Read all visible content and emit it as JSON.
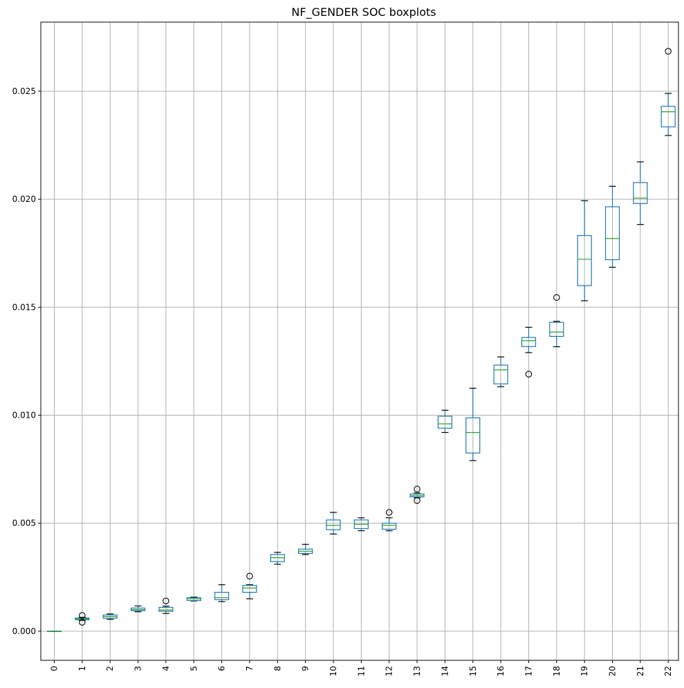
{
  "chart_data": {
    "type": "boxplot",
    "title": "NF_GENDER SOC boxplots",
    "xlabel": "",
    "ylabel": "",
    "ylim": [
      -0.00135,
      0.0282
    ],
    "grid": true,
    "categories": [
      "0",
      "1",
      "2",
      "3",
      "4",
      "5",
      "6",
      "7",
      "8",
      "9",
      "10",
      "11",
      "12",
      "13",
      "14",
      "15",
      "16",
      "17",
      "18",
      "19",
      "20",
      "21",
      "22"
    ],
    "y_ticks": [
      0.0,
      0.005,
      0.01,
      0.015,
      0.02,
      0.025
    ],
    "y_tick_labels": [
      "0.000",
      "0.005",
      "0.010",
      "0.015",
      "0.020",
      "0.025"
    ],
    "colors": {
      "box": "#1f77b4",
      "median": "#2ca02c",
      "whisker": "#000000",
      "grid": "#b0b0b0"
    },
    "boxes": [
      {
        "label": "0",
        "whislo": 0.0,
        "q1": 0.0,
        "med": 0.0,
        "q3": 0.0,
        "whishi": 0.0,
        "fliers": []
      },
      {
        "label": "1",
        "whislo": 0.0005,
        "q1": 0.00053,
        "med": 0.00057,
        "q3": 0.00061,
        "whishi": 0.00064,
        "fliers": [
          0.00073,
          0.00041
        ]
      },
      {
        "label": "2",
        "whislo": 0.00055,
        "q1": 0.0006,
        "med": 0.00068,
        "q3": 0.00075,
        "whishi": 0.0008,
        "fliers": []
      },
      {
        "label": "3",
        "whislo": 0.0009,
        "q1": 0.00095,
        "med": 0.001,
        "q3": 0.00107,
        "whishi": 0.00117,
        "fliers": []
      },
      {
        "label": "4",
        "whislo": 0.00082,
        "q1": 0.00092,
        "med": 0.00098,
        "q3": 0.0011,
        "whishi": 0.00116,
        "fliers": [
          0.0014
        ]
      },
      {
        "label": "5",
        "whislo": 0.0014,
        "q1": 0.00142,
        "med": 0.0015,
        "q3": 0.00155,
        "whishi": 0.00158,
        "fliers": []
      },
      {
        "label": "6",
        "whislo": 0.00137,
        "q1": 0.00146,
        "med": 0.00155,
        "q3": 0.0018,
        "whishi": 0.00215,
        "fliers": []
      },
      {
        "label": "7",
        "whislo": 0.0015,
        "q1": 0.0018,
        "med": 0.002,
        "q3": 0.00212,
        "whishi": 0.00215,
        "fliers": [
          0.00255
        ]
      },
      {
        "label": "8",
        "whislo": 0.0031,
        "q1": 0.00322,
        "med": 0.0034,
        "q3": 0.00355,
        "whishi": 0.00365,
        "fliers": []
      },
      {
        "label": "9",
        "whislo": 0.00355,
        "q1": 0.0036,
        "med": 0.0037,
        "q3": 0.0038,
        "whishi": 0.00402,
        "fliers": []
      },
      {
        "label": "10",
        "whislo": 0.0045,
        "q1": 0.0047,
        "med": 0.0049,
        "q3": 0.00515,
        "whishi": 0.0055,
        "fliers": []
      },
      {
        "label": "11",
        "whislo": 0.00465,
        "q1": 0.00475,
        "med": 0.00495,
        "q3": 0.00515,
        "whishi": 0.00525,
        "fliers": []
      },
      {
        "label": "12",
        "whislo": 0.00465,
        "q1": 0.00472,
        "med": 0.0049,
        "q3": 0.005,
        "whishi": 0.00525,
        "fliers": [
          0.0055
        ]
      },
      {
        "label": "13",
        "whislo": 0.00618,
        "q1": 0.00622,
        "med": 0.00628,
        "q3": 0.00635,
        "whishi": 0.0064,
        "fliers": [
          0.00658,
          0.00605
        ]
      },
      {
        "label": "14",
        "whislo": 0.0092,
        "q1": 0.0094,
        "med": 0.0096,
        "q3": 0.00995,
        "whishi": 0.01023,
        "fliers": []
      },
      {
        "label": "15",
        "whislo": 0.0079,
        "q1": 0.00825,
        "med": 0.0092,
        "q3": 0.00988,
        "whishi": 0.01125,
        "fliers": []
      },
      {
        "label": "16",
        "whislo": 0.01132,
        "q1": 0.01145,
        "med": 0.0121,
        "q3": 0.01232,
        "whishi": 0.0127,
        "fliers": []
      },
      {
        "label": "17",
        "whislo": 0.0129,
        "q1": 0.01318,
        "med": 0.01345,
        "q3": 0.0136,
        "whishi": 0.01407,
        "fliers": [
          0.0119
        ]
      },
      {
        "label": "18",
        "whislo": 0.01317,
        "q1": 0.01365,
        "med": 0.01385,
        "q3": 0.0143,
        "whishi": 0.01435,
        "fliers": [
          0.01545
        ]
      },
      {
        "label": "19",
        "whislo": 0.0153,
        "q1": 0.016,
        "med": 0.01722,
        "q3": 0.01832,
        "whishi": 0.01993,
        "fliers": []
      },
      {
        "label": "20",
        "whislo": 0.01685,
        "q1": 0.0172,
        "med": 0.01818,
        "q3": 0.01965,
        "whishi": 0.0206,
        "fliers": []
      },
      {
        "label": "21",
        "whislo": 0.01883,
        "q1": 0.0198,
        "med": 0.02005,
        "q3": 0.02077,
        "whishi": 0.02173,
        "fliers": []
      },
      {
        "label": "22",
        "whislo": 0.02295,
        "q1": 0.02335,
        "med": 0.02405,
        "q3": 0.0243,
        "whishi": 0.0249,
        "fliers": [
          0.02685
        ]
      }
    ]
  }
}
